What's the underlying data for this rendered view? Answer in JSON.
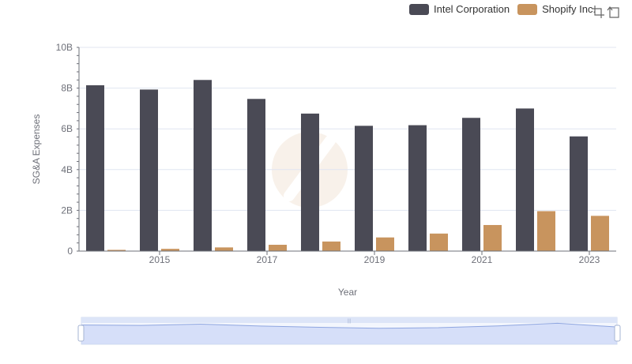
{
  "chart_data": {
    "type": "bar",
    "xlabel": "Year",
    "ylabel": "SG&A Expenses",
    "ylim": [
      0,
      10000000000
    ],
    "y_ticks": [
      "0",
      "2B",
      "4B",
      "6B",
      "8B",
      "10B"
    ],
    "x_tick_labels": [
      "2015",
      "2017",
      "2019",
      "2021",
      "2023"
    ],
    "categories": [
      "2014",
      "2015",
      "2016",
      "2017",
      "2018",
      "2019",
      "2020",
      "2021",
      "2022",
      "2023"
    ],
    "series": [
      {
        "name": "Intel Corporation",
        "color": "#4a4a55",
        "values": [
          8140000000,
          7930000000,
          8400000000,
          7470000000,
          6750000000,
          6150000000,
          6180000000,
          6540000000,
          7000000000,
          5630000000
        ]
      },
      {
        "name": "Shopify Inc.",
        "color": "#c8945e",
        "values": [
          60000000,
          110000000,
          180000000,
          310000000,
          470000000,
          670000000,
          860000000,
          1280000000,
          1960000000,
          1730000000
        ]
      }
    ],
    "grid": true,
    "legend_position": "top-right"
  },
  "legend": {
    "items": [
      {
        "label": "Intel Corporation",
        "color": "#4a4a55"
      },
      {
        "label": "Shopify Inc.",
        "color": "#c8945e"
      }
    ]
  },
  "toolbox": {
    "icons": [
      "zoom-icon",
      "restore-icon"
    ]
  },
  "data_zoom": {
    "start": 0,
    "end": 100,
    "handle_label": "|||"
  }
}
